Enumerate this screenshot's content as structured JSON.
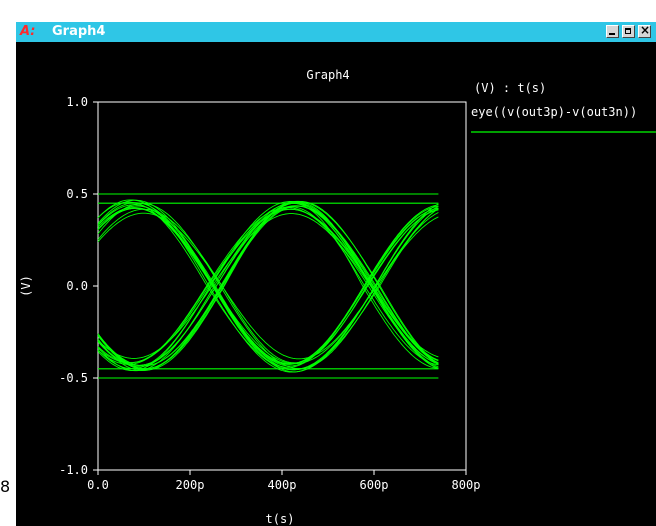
{
  "window": {
    "title": "Graph4",
    "logo_text": "A:",
    "stray_label": "8"
  },
  "chart_data": {
    "type": "line",
    "title": "Graph4",
    "xlabel": "t(s)",
    "ylabel": "(V)",
    "xlim": [
      0,
      800
    ],
    "ylim": [
      -1.0,
      1.0
    ],
    "xticks": [
      "0.0",
      "200p",
      "400p",
      "600p",
      "800p"
    ],
    "yticks": [
      "1.0",
      "0.5",
      "0.0",
      "-0.5",
      "-1.0"
    ],
    "legend": {
      "header": "(V) : t(s)",
      "series_name": "eye((v(out3p)-v(out3n))",
      "placement": "right"
    },
    "color": "#00ff00",
    "eye": {
      "unit_interval": 340,
      "crossings": [
        -85,
        255,
        595
      ],
      "high_level": 0.47,
      "low_level": -0.47,
      "rail_high": 0.5,
      "rail_low": -0.5,
      "x_start": 0,
      "x_end": 740,
      "traces": 28
    }
  }
}
